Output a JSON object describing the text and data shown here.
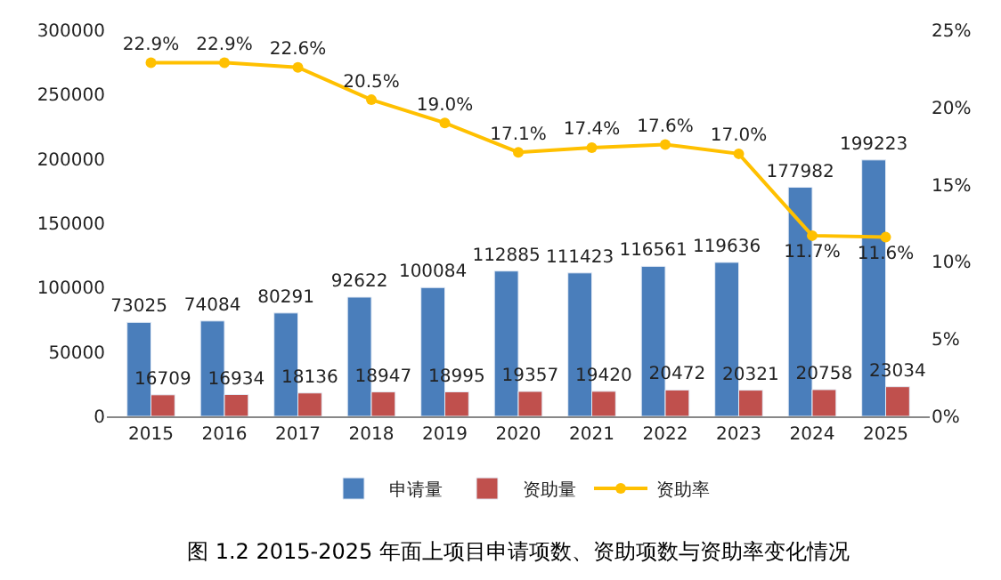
{
  "chart_data": {
    "type": "bar",
    "title": "图 1.2 2015-2025 年面上项目申请项数、资助项数与资助率变化情况",
    "categories": [
      "2015",
      "2016",
      "2017",
      "2018",
      "2019",
      "2020",
      "2021",
      "2022",
      "2023",
      "2024",
      "2025"
    ],
    "series": [
      {
        "name": "申请量",
        "color": "#4a7ebb",
        "values": [
          73025,
          74084,
          80291,
          92622,
          100084,
          112885,
          111423,
          116561,
          119636,
          177982,
          199223
        ],
        "value_labels": [
          "73025",
          "74084",
          "80291",
          "92622",
          "100084",
          "112885",
          "111423",
          "116561",
          "119636",
          "177982",
          "199223"
        ]
      },
      {
        "name": "资助量",
        "color": "#c0504d",
        "values": [
          16709,
          16934,
          18136,
          18947,
          18995,
          19357,
          19420,
          20472,
          20321,
          20758,
          23034
        ],
        "value_labels": [
          "16709",
          "16934",
          "18136",
          "18947",
          "18995",
          "19357",
          "19420",
          "20472",
          "20321",
          "20758",
          "23034"
        ]
      },
      {
        "name": "资助率",
        "type": "line",
        "axis": "y2",
        "color": "#ffc000",
        "marker": "circle",
        "values": [
          22.9,
          22.9,
          22.6,
          20.5,
          19.0,
          17.1,
          17.4,
          17.6,
          17.0,
          11.7,
          11.6
        ],
        "value_labels": [
          "22.9%",
          "22.9%",
          "22.6%",
          "20.5%",
          "19.0%",
          "17.1%",
          "17.4%",
          "17.6%",
          "17.0%",
          "11.7%",
          "11.6%"
        ]
      }
    ],
    "ylim": [
      0,
      300000
    ],
    "yticks": [
      0,
      50000,
      100000,
      150000,
      200000,
      250000,
      300000
    ],
    "y2lim": [
      0,
      25
    ],
    "y2ticks": [
      {
        "value": 0,
        "label": "0%"
      },
      {
        "value": 5,
        "label": "5%"
      },
      {
        "value": 10,
        "label": "10%"
      },
      {
        "value": 15,
        "label": "15%"
      },
      {
        "value": 20,
        "label": "20%"
      },
      {
        "value": 25,
        "label": "25%"
      }
    ],
    "legend": "bottom"
  }
}
